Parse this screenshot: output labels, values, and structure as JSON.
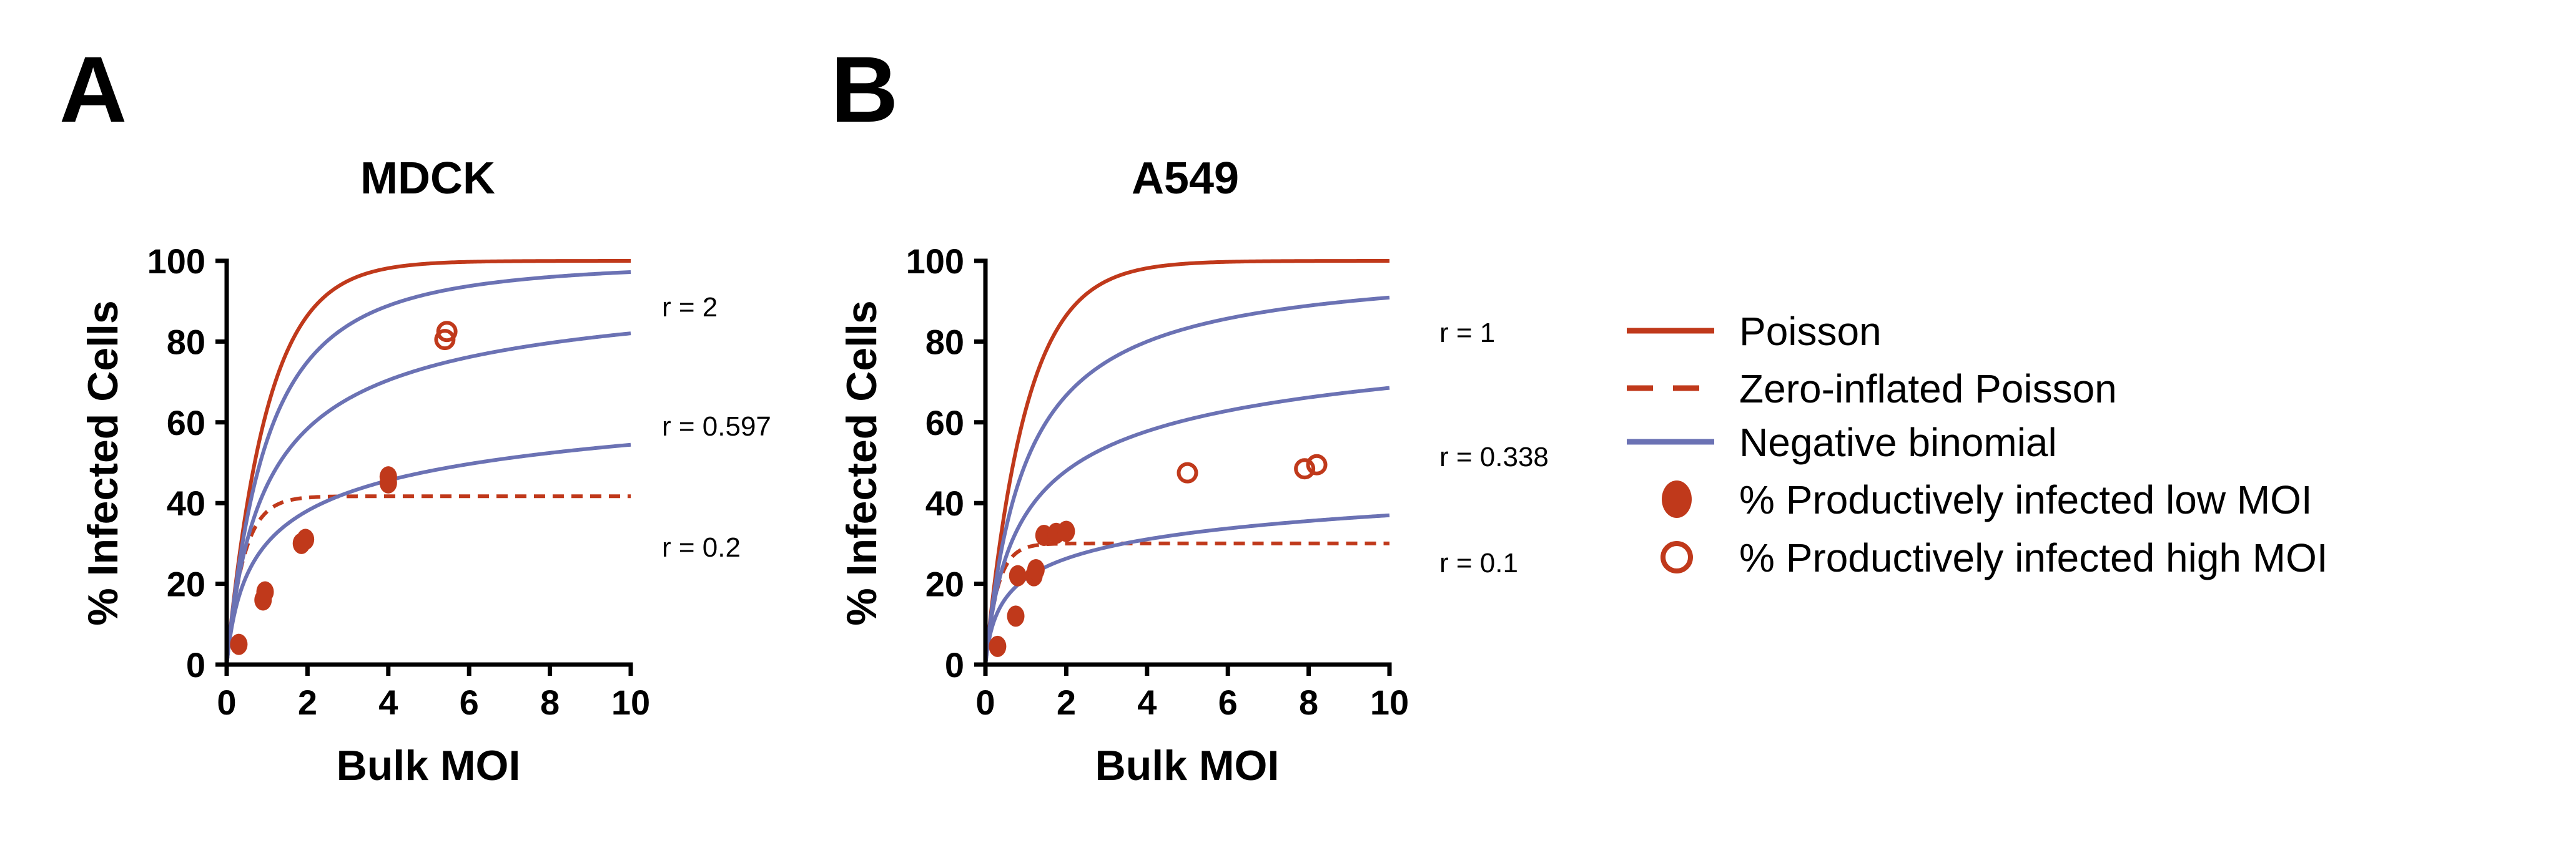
{
  "colors": {
    "poisson": "#C0391B",
    "negative_binomial": "#6B72B4",
    "points": "#C0391B",
    "axis": "#000000"
  },
  "chart_data": [
    {
      "panel_label": "A",
      "type": "line",
      "title": "MDCK",
      "xlabel": "Bulk MOI",
      "ylabel": "% Infected Cells",
      "xlim": [
        0,
        10
      ],
      "ylim": [
        0,
        100
      ],
      "xticks": [
        0,
        2,
        4,
        6,
        8,
        10
      ],
      "yticks": [
        0,
        20,
        40,
        60,
        80,
        100
      ],
      "grid": false,
      "series": [
        {
          "name": "Poisson",
          "model": "poisson",
          "style": "solid",
          "color": "#C0391B"
        },
        {
          "name": "Zero-inflated Poisson",
          "model": "zip",
          "pi": 0.583,
          "style": "dashed",
          "color": "#C0391B"
        },
        {
          "name": "Negative binomial",
          "model": "negbin",
          "r": 2,
          "style": "solid",
          "color": "#6B72B4"
        },
        {
          "name": "Negative binomial",
          "model": "negbin",
          "r": 0.597,
          "style": "solid",
          "color": "#6B72B4"
        },
        {
          "name": "Negative binomial",
          "model": "negbin",
          "r": 0.2,
          "style": "solid",
          "color": "#6B72B4"
        },
        {
          "name": "% Productively infected low MOI",
          "style": "filled-marker",
          "color": "#C0391B",
          "points": [
            {
              "x": 0.3,
              "y": 5
            },
            {
              "x": 0.9,
              "y": 16
            },
            {
              "x": 0.95,
              "y": 18
            },
            {
              "x": 1.85,
              "y": 30
            },
            {
              "x": 1.95,
              "y": 31
            },
            {
              "x": 4.0,
              "y": 45
            },
            {
              "x": 4.0,
              "y": 46.5
            }
          ]
        },
        {
          "name": "% Productively infected high MOI",
          "style": "open-marker",
          "color": "#C0391B",
          "points": [
            {
              "x": 5.4,
              "y": 80.5
            },
            {
              "x": 5.45,
              "y": 82.5
            }
          ]
        }
      ],
      "annotations": [
        {
          "text": "r = 2",
          "y": 89
        },
        {
          "text": "r = 0.597",
          "y": 59
        },
        {
          "text": "r = 0.2",
          "y": 29
        }
      ]
    },
    {
      "panel_label": "B",
      "type": "line",
      "title": "A549",
      "xlabel": "Bulk MOI",
      "ylabel": "% Infected Cells",
      "xlim": [
        0,
        10
      ],
      "ylim": [
        0,
        100
      ],
      "xticks": [
        0,
        2,
        4,
        6,
        8,
        10
      ],
      "yticks": [
        0,
        20,
        40,
        60,
        80,
        100
      ],
      "grid": false,
      "series": [
        {
          "name": "Poisson",
          "model": "poisson",
          "style": "solid",
          "color": "#C0391B"
        },
        {
          "name": "Zero-inflated Poisson",
          "model": "zip",
          "pi": 0.7,
          "style": "dashed",
          "color": "#C0391B"
        },
        {
          "name": "Negative binomial",
          "model": "negbin",
          "r": 1,
          "style": "solid",
          "color": "#6B72B4"
        },
        {
          "name": "Negative binomial",
          "model": "negbin",
          "r": 0.338,
          "style": "solid",
          "color": "#6B72B4"
        },
        {
          "name": "Negative binomial",
          "model": "negbin",
          "r": 0.1,
          "style": "solid",
          "color": "#6B72B4"
        },
        {
          "name": "% Productively infected low MOI",
          "style": "filled-marker",
          "color": "#C0391B",
          "points": [
            {
              "x": 0.3,
              "y": 4.5
            },
            {
              "x": 0.75,
              "y": 12
            },
            {
              "x": 0.8,
              "y": 22
            },
            {
              "x": 1.2,
              "y": 22
            },
            {
              "x": 1.25,
              "y": 23.5
            },
            {
              "x": 1.45,
              "y": 32
            },
            {
              "x": 1.75,
              "y": 32.5
            },
            {
              "x": 2.0,
              "y": 33
            }
          ]
        },
        {
          "name": "% Productively infected high MOI",
          "style": "open-marker",
          "color": "#C0391B",
          "points": [
            {
              "x": 5.0,
              "y": 47.5
            },
            {
              "x": 7.9,
              "y": 48.5
            },
            {
              "x": 8.2,
              "y": 49.5
            }
          ]
        }
      ],
      "annotations": [
        {
          "text": "r = 1",
          "y": 82
        },
        {
          "text": "r = 0.338",
          "y": 51
        },
        {
          "text": "r = 0.1",
          "y": 25
        }
      ]
    }
  ],
  "legend": {
    "placement": "right",
    "items": [
      {
        "label": "Poisson",
        "symbol": "solid-line",
        "color": "#C0391B"
      },
      {
        "label": "Zero-inflated Poisson",
        "symbol": "dashed-line",
        "color": "#C0391B"
      },
      {
        "label": "Negative binomial",
        "symbol": "solid-line",
        "color": "#6B72B4"
      },
      {
        "label": "% Productively infected low MOI",
        "symbol": "filled-circle",
        "color": "#C0391B"
      },
      {
        "label": "% Productively infected high MOI",
        "symbol": "open-circle",
        "color": "#C0391B"
      }
    ]
  }
}
